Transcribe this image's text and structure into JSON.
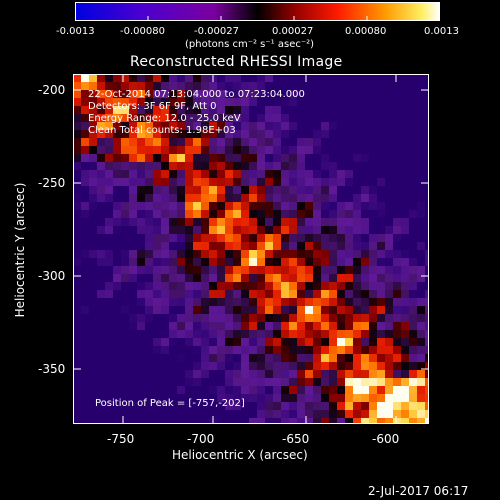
{
  "colorbar": {
    "ticks": [
      "-0.0013",
      "-0.00080",
      "-0.00027",
      "0.00027",
      "0.00080",
      "0.0013"
    ],
    "unit_label": "(photons cm⁻² s⁻¹ asec⁻²)",
    "colors": [
      "#0000d0",
      "#5a00c8",
      "#8a00a8",
      "#000000",
      "#a00000",
      "#ff2000",
      "#ff9000",
      "#ffe040",
      "#ffffff"
    ]
  },
  "plot": {
    "title": "Reconstructed RHESSI Image",
    "xlabel": "Heliocentric X (arcsec)",
    "ylabel": "Heliocentric Y (arcsec)",
    "xticks": [
      "-750",
      "-700",
      "-650",
      "-600"
    ],
    "yticks": [
      "-200",
      "-250",
      "-300",
      "-350"
    ],
    "xlim": [
      -772,
      -582
    ],
    "ylim": [
      -382,
      -192
    ]
  },
  "overlay": {
    "line1": "22-Oct-2014 07:13:04.000 to 07:23:04.000",
    "line2": "Detectors: 3F 6F 9F, Att 0",
    "line3": "Energy Range: 12.0 - 25.0 keV",
    "line4": "Clean    Total counts: 1.98E+03",
    "peak": "Position of Peak = [-757,-202]"
  },
  "footer": {
    "timestamp": "2-Jul-2017 06:17"
  }
}
